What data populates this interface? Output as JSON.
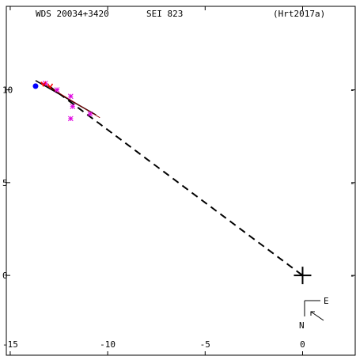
{
  "header": {
    "left": "WDS 20034+3420",
    "center": "SEI 823",
    "right": "(Hrt2017a)"
  },
  "compass": {
    "east": "E",
    "north": "N"
  },
  "chart_data": {
    "type": "scatter",
    "title": "",
    "xlabel": "",
    "ylabel": "",
    "xlim": [
      -15.2,
      2.7
    ],
    "ylim": [
      -4.3,
      14.5
    ],
    "x_ticks": [
      {
        "value": -15,
        "label": "-15"
      },
      {
        "value": -10,
        "label": "-10"
      },
      {
        "value": -5,
        "label": "-5"
      },
      {
        "value": 0,
        "label": "0"
      }
    ],
    "y_ticks": [
      {
        "value": 10,
        "label": "10"
      },
      {
        "value": 5,
        "label": "5"
      },
      {
        "value": 0,
        "label": "0"
      }
    ],
    "primary": {
      "x": 0,
      "y": 0
    },
    "dashed_line": [
      {
        "x": -13.0,
        "y": 10.2
      },
      {
        "x": 0,
        "y": 0
      }
    ],
    "fit_line": [
      {
        "x": -13.7,
        "y": 10.5
      },
      {
        "x": -10.6,
        "y": 8.65
      }
    ],
    "fit_line_red": [
      {
        "x": -13.4,
        "y": 10.4
      },
      {
        "x": -10.4,
        "y": 8.5
      }
    ],
    "magenta_points": [
      {
        "x": -13.2,
        "y": 10.35
      },
      {
        "x": -12.6,
        "y": 10.0
      },
      {
        "x": -11.9,
        "y": 9.65
      },
      {
        "x": -11.8,
        "y": 9.1
      },
      {
        "x": -11.9,
        "y": 8.45
      },
      {
        "x": -10.9,
        "y": 8.7
      }
    ],
    "red_points": [
      {
        "x": -12.95,
        "y": 10.2
      },
      {
        "x": -13.3,
        "y": 10.3
      }
    ],
    "blue_points": [
      {
        "x": -13.7,
        "y": 10.2
      }
    ],
    "colors": {
      "magenta": "#e000e0",
      "blue": "#0000ff",
      "red": "#ff0000",
      "dark_red": "#8b0000"
    }
  }
}
